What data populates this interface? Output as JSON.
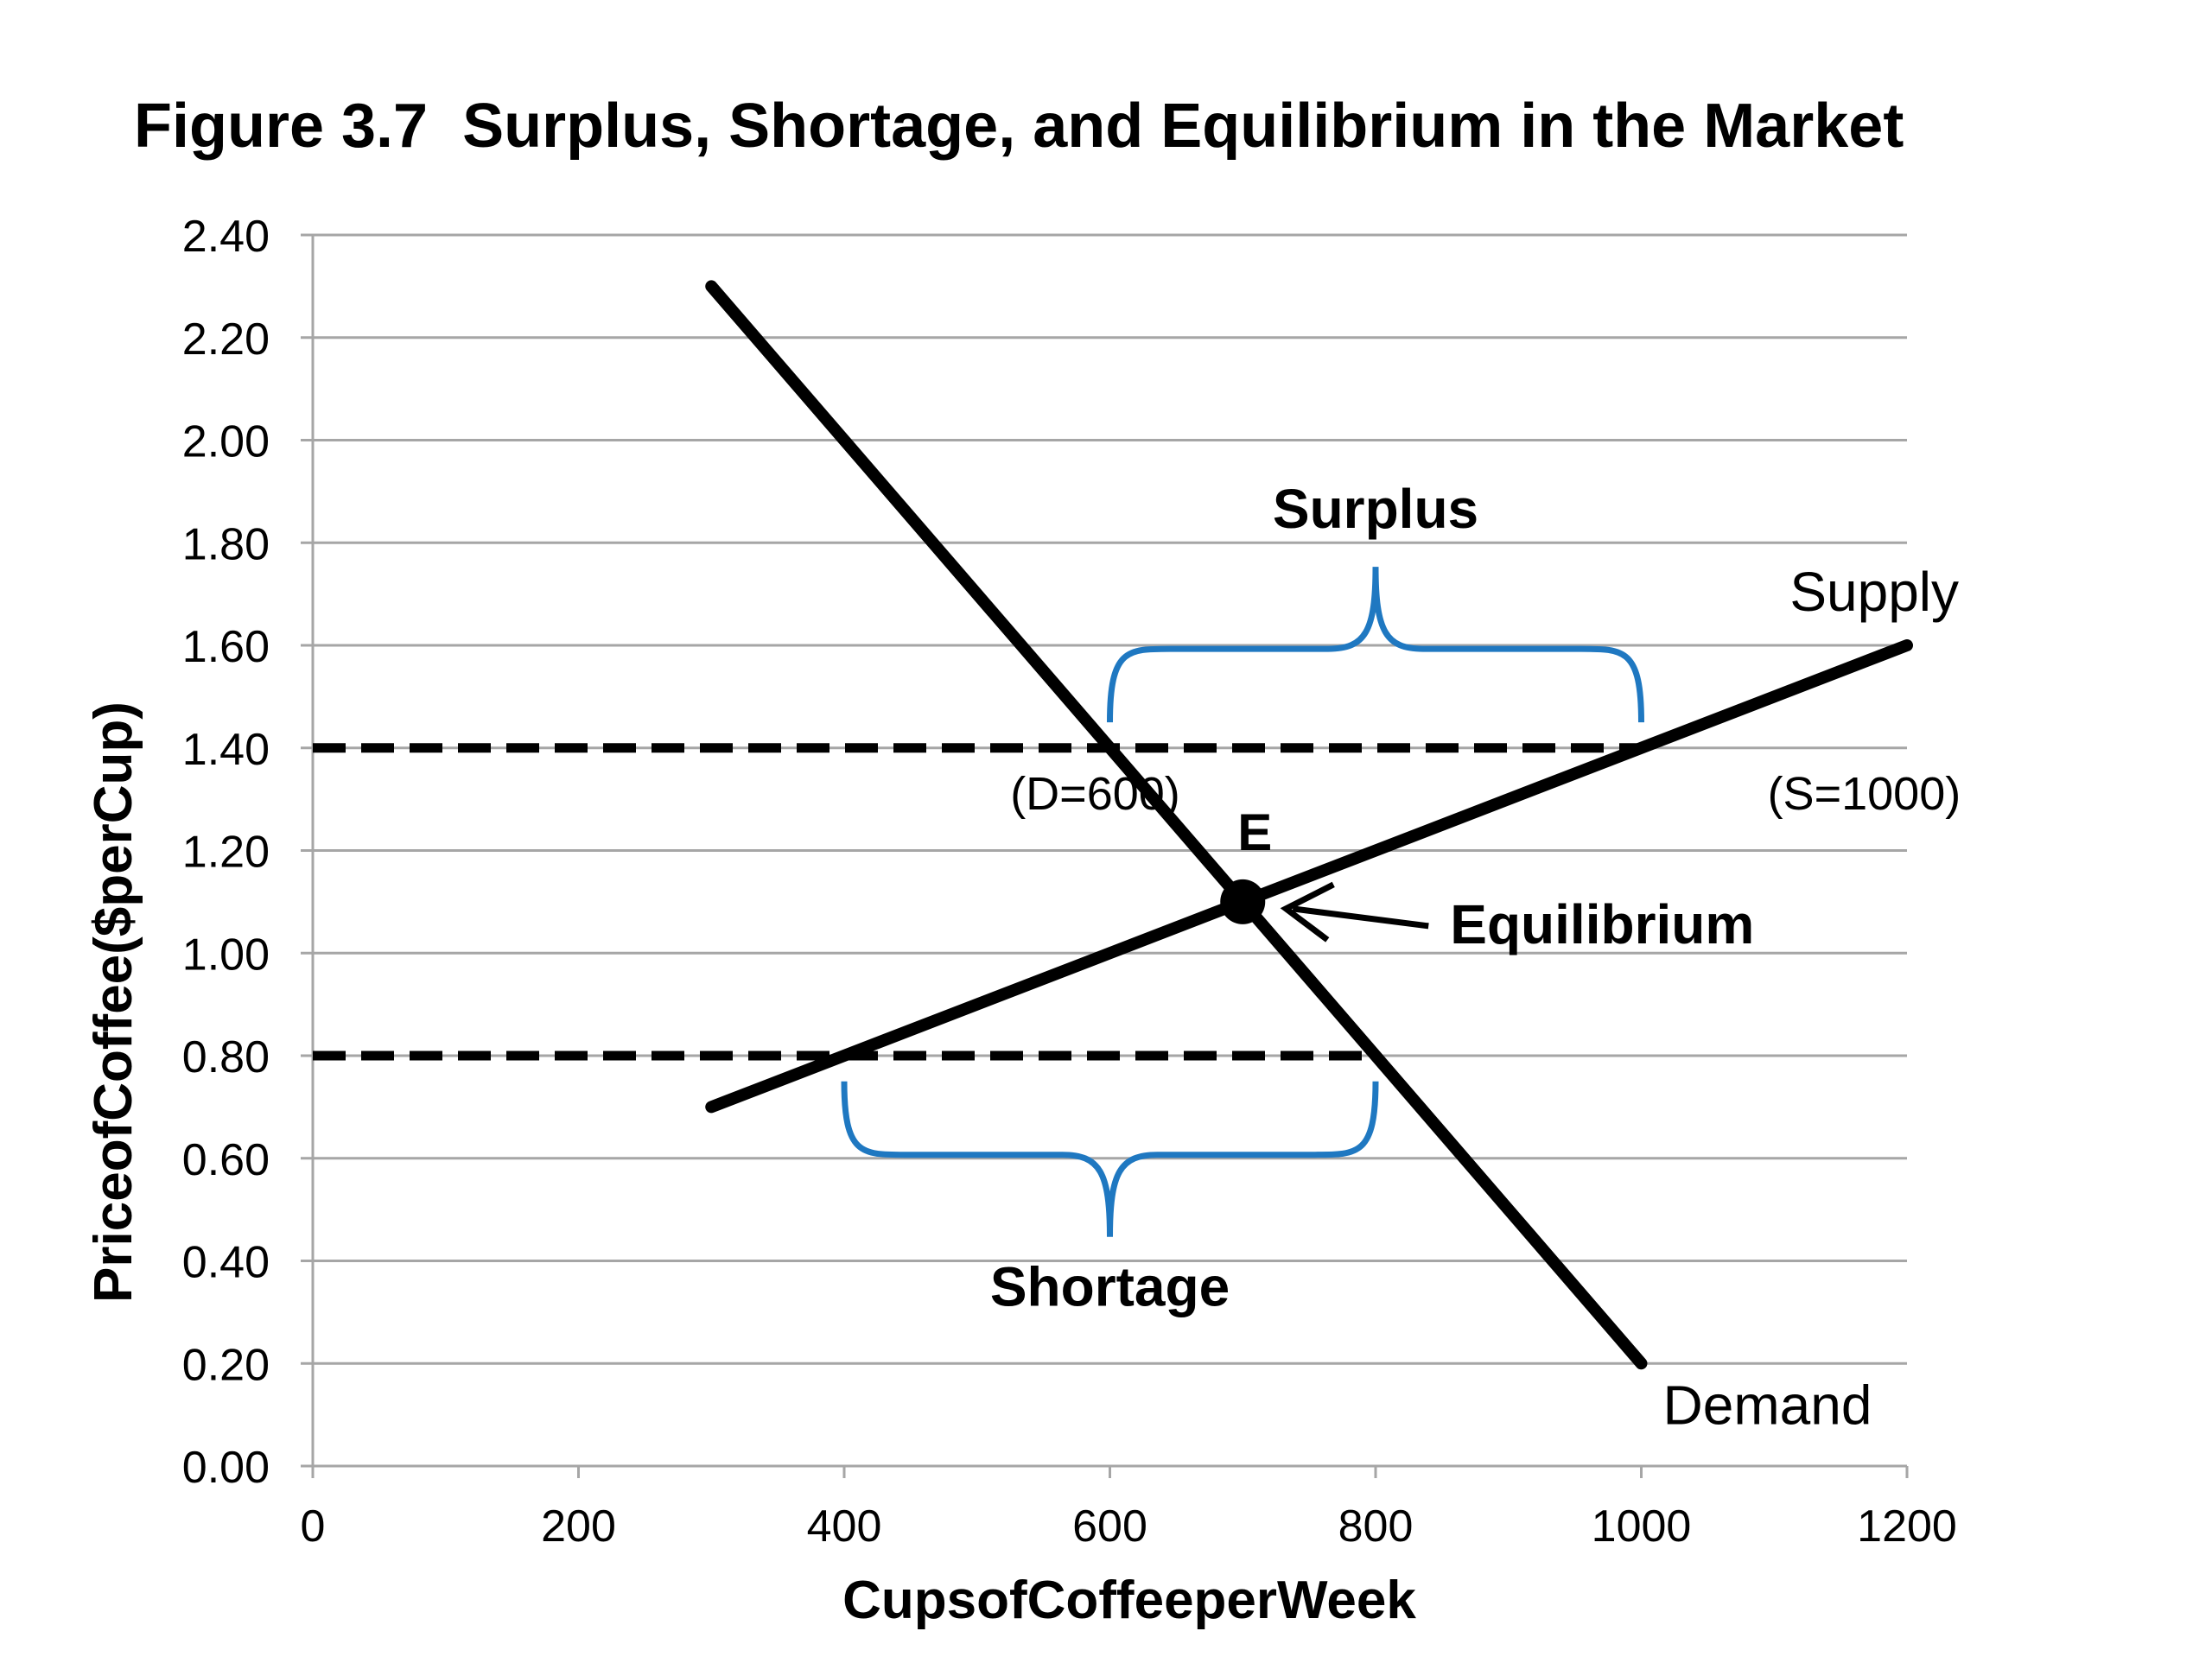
{
  "chart_data": {
    "type": "line",
    "title": "Figure 3.7  Surplus, Shortage, and Equilibrium in the Market",
    "xlabel": "Cups\u001fof\u001fCoffee\u001fper\u001fWeek",
    "ylabel": "Price\u001fof\u001fCoffee\u001f($\u001fper\u001fCup)",
    "xlim": [
      0,
      1200
    ],
    "ylim": [
      0,
      2.4
    ],
    "x_ticks": [
      "0",
      "200",
      "400",
      "600",
      "800",
      "1000",
      "1200"
    ],
    "y_ticks": [
      "0.00",
      "0.20",
      "0.40",
      "0.60",
      "0.80",
      "1.00",
      "1.20",
      "1.40",
      "1.60",
      "1.80",
      "2.00",
      "2.20",
      "2.40"
    ],
    "grid": "horizontal",
    "series": [
      {
        "name": "Demand",
        "x": [
          300,
          1000
        ],
        "y": [
          2.3,
          0.2
        ]
      },
      {
        "name": "Supply",
        "x": [
          300,
          1200
        ],
        "y": [
          0.7,
          1.6
        ]
      }
    ],
    "price_lines": [
      {
        "y": 1.4,
        "x_start": 0,
        "x_end": 1000,
        "style": "dashed"
      },
      {
        "y": 0.8,
        "x_start": 0,
        "x_end": 800,
        "style": "dashed"
      }
    ],
    "equilibrium": {
      "x": 700,
      "y": 1.1,
      "point_label": "E",
      "arrow_label": "Equilibrium"
    },
    "annotations": [
      {
        "text": "(D=600)",
        "x": 525,
        "y": 1.28
      },
      {
        "text": "(S=1000)",
        "x": 1095,
        "y": 1.28
      }
    ],
    "braces": [
      {
        "label": "Surplus",
        "x_start": 600,
        "x_end": 1000,
        "y": 1.45,
        "direction": "up"
      },
      {
        "label": "Shortage",
        "x_start": 400,
        "x_end": 800,
        "y": 0.75,
        "direction": "down"
      }
    ],
    "curve_labels": [
      {
        "text": "Supply",
        "series": "Supply"
      },
      {
        "text": "Demand",
        "series": "Demand"
      }
    ],
    "colors": {
      "curves": "#000000",
      "brace": "#1f78c1",
      "grid": "#a6a6a6"
    }
  }
}
